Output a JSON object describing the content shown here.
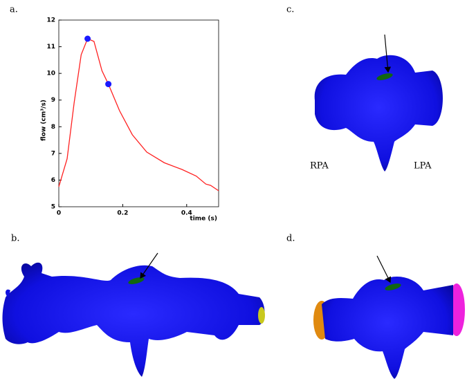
{
  "chart_data": {
    "type": "line",
    "xlabel": "time (s)",
    "ylabel": "flow (cm³/s)",
    "xlim": [
      0,
      0.5
    ],
    "xticks": [
      0,
      0.2,
      0.4
    ],
    "ylim": [
      5,
      12
    ],
    "yticks": [
      5,
      6,
      7,
      8,
      9,
      10,
      11,
      12
    ],
    "series": [
      {
        "color": "#ff2020",
        "mode": "line",
        "x": [
          0,
          0.026,
          0.048,
          0.07,
          0.09,
          0.11,
          0.135,
          0.155,
          0.19,
          0.23,
          0.275,
          0.33,
          0.385,
          0.43,
          0.46,
          0.475,
          0.5
        ],
        "values": [
          5.75,
          6.8,
          8.9,
          10.7,
          11.3,
          11.2,
          10.1,
          9.6,
          8.6,
          7.7,
          7.05,
          6.65,
          6.4,
          6.15,
          5.85,
          5.8,
          5.6
        ]
      },
      {
        "color": "#1a1aff",
        "mode": "markers",
        "x": [
          0.09,
          0.155
        ],
        "values": [
          11.3,
          9.6
        ]
      }
    ]
  },
  "figure": {
    "panel_labels": [
      "a.",
      "b.",
      "c.",
      "d."
    ],
    "annotations": [
      "RPA",
      "LPA"
    ]
  }
}
